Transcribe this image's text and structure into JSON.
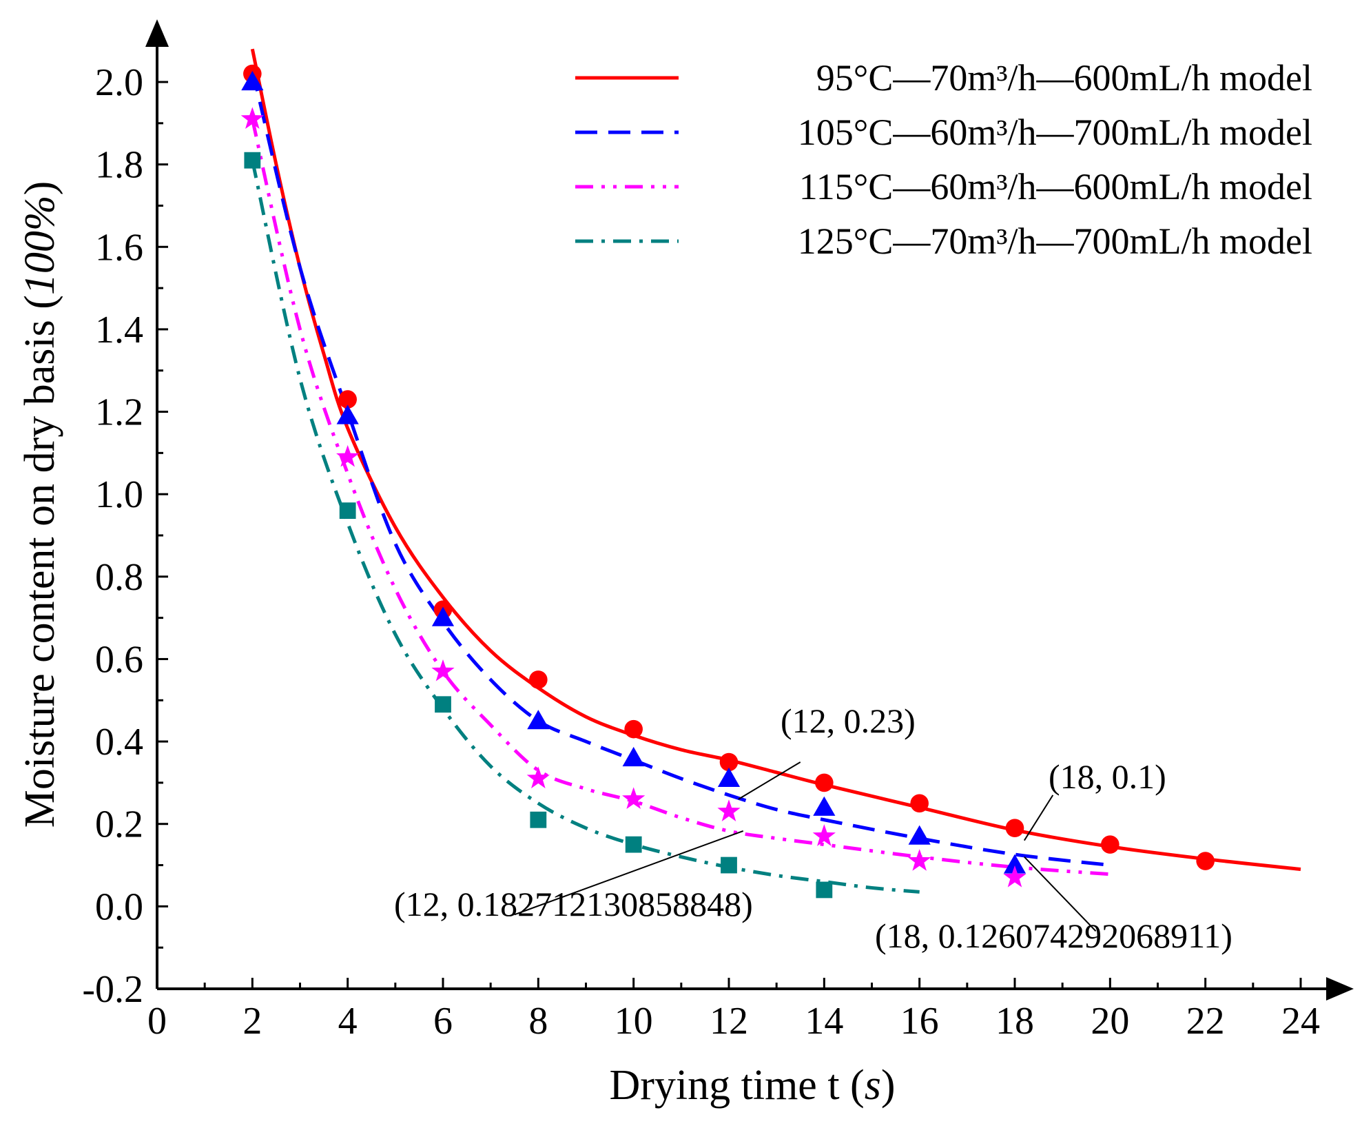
{
  "chart_data": {
    "type": "scatter",
    "xlabel": "Drying time t (s)",
    "xlabel_parts": [
      "Drying time t (",
      "s",
      ")"
    ],
    "ylabel": "Moisture content on dry basis (100%)",
    "ylabel_parts": [
      "Moisture content on dry basis (",
      "100%",
      ")"
    ],
    "xlim": [
      0,
      24
    ],
    "ylim": [
      -0.2,
      2.0
    ],
    "xticks": [
      0,
      2,
      4,
      6,
      8,
      10,
      12,
      14,
      16,
      18,
      20,
      22,
      24
    ],
    "yticks": [
      -0.2,
      0.0,
      0.2,
      0.4,
      0.6,
      0.8,
      1.0,
      1.2,
      1.4,
      1.6,
      1.8,
      2.0
    ],
    "ytick_labels": [
      "-0.2",
      "0.0",
      "0.2",
      "0.4",
      "0.6",
      "0.8",
      "1.0",
      "1.2",
      "1.4",
      "1.6",
      "1.8",
      "2.0"
    ],
    "legend_position": "top-right",
    "grid": false,
    "series": [
      {
        "name": " 95°C—70m³/h—600mL/h model",
        "color": "#ff0000",
        "marker": "circle",
        "line_style": "solid",
        "x": [
          2,
          4,
          6,
          8,
          10,
          12,
          14,
          16,
          18,
          20,
          22
        ],
        "y": [
          2.02,
          1.23,
          0.72,
          0.55,
          0.43,
          0.35,
          0.3,
          0.25,
          0.19,
          0.15,
          0.11
        ],
        "model_x": [
          2,
          2.5,
          3,
          3.5,
          4,
          5,
          6,
          7,
          8,
          9,
          10,
          11,
          12,
          13,
          14,
          16,
          18,
          20,
          22,
          24
        ],
        "model_y": [
          2.08,
          1.8,
          1.55,
          1.34,
          1.16,
          0.92,
          0.75,
          0.62,
          0.53,
          0.46,
          0.415,
          0.38,
          0.355,
          0.325,
          0.295,
          0.24,
          0.185,
          0.145,
          0.115,
          0.09
        ]
      },
      {
        "name": "105°C—60m³/h—700mL/h model",
        "color": "#0000ff",
        "marker": "triangle",
        "line_style": "dash",
        "x": [
          2,
          4,
          6,
          8,
          10,
          12,
          14,
          16,
          18
        ],
        "y": [
          2.0,
          1.19,
          0.7,
          0.45,
          0.36,
          0.31,
          0.24,
          0.17,
          0.1
        ],
        "model_x": [
          2,
          3,
          4,
          5,
          6,
          7,
          8,
          9,
          10,
          11,
          12,
          13,
          14,
          16,
          18,
          20
        ],
        "model_y": [
          2.03,
          1.55,
          1.2,
          0.88,
          0.69,
          0.55,
          0.45,
          0.4,
          0.355,
          0.31,
          0.27,
          0.235,
          0.21,
          0.165,
          0.126,
          0.1
        ]
      },
      {
        "name": "115°C—60m³/h—600mL/h model",
        "color": "#ff00ff",
        "marker": "star",
        "line_style": "dash-dot-dot",
        "x": [
          2,
          4,
          6,
          8,
          10,
          12,
          14,
          16,
          18
        ],
        "y": [
          1.91,
          1.09,
          0.57,
          0.31,
          0.26,
          0.23,
          0.17,
          0.11,
          0.07
        ],
        "model_x": [
          2,
          3,
          4,
          5,
          6,
          7,
          8,
          9,
          10,
          11,
          12,
          13,
          14,
          16,
          18,
          20
        ],
        "model_y": [
          1.91,
          1.4,
          1.05,
          0.77,
          0.57,
          0.44,
          0.33,
          0.285,
          0.255,
          0.215,
          0.1827,
          0.165,
          0.15,
          0.12,
          0.095,
          0.078
        ]
      },
      {
        "name": "125°C—70m³/h—700mL/h model",
        "color": "#008080",
        "marker": "square",
        "line_style": "dash-dot",
        "x": [
          2,
          4,
          6,
          8,
          10,
          12,
          14
        ],
        "y": [
          1.81,
          0.96,
          0.49,
          0.21,
          0.15,
          0.1,
          0.04
        ],
        "model_x": [
          2,
          3,
          4,
          5,
          6,
          7,
          8,
          9,
          10,
          11,
          12,
          13,
          14,
          15,
          16
        ],
        "model_y": [
          1.81,
          1.28,
          0.93,
          0.66,
          0.48,
          0.34,
          0.25,
          0.19,
          0.15,
          0.12,
          0.095,
          0.075,
          0.06,
          0.045,
          0.035
        ]
      }
    ],
    "annotations": [
      {
        "text": "(12, 0.23)",
        "point": [
          12.2,
          0.26
        ],
        "anchor": [
          13.5,
          0.35
        ]
      },
      {
        "text": "(12, 0.182712130858848)",
        "point": [
          12.3,
          0.183
        ],
        "anchor": [
          7.5,
          -0.02
        ]
      },
      {
        "text": "(18, 0.1)",
        "point": [
          18.2,
          0.16
        ],
        "anchor": [
          18.8,
          0.27
        ]
      },
      {
        "text": "(18, 0.126074292068911)",
        "point": [
          18.2,
          0.12
        ],
        "anchor": [
          19.7,
          -0.06
        ]
      }
    ]
  }
}
